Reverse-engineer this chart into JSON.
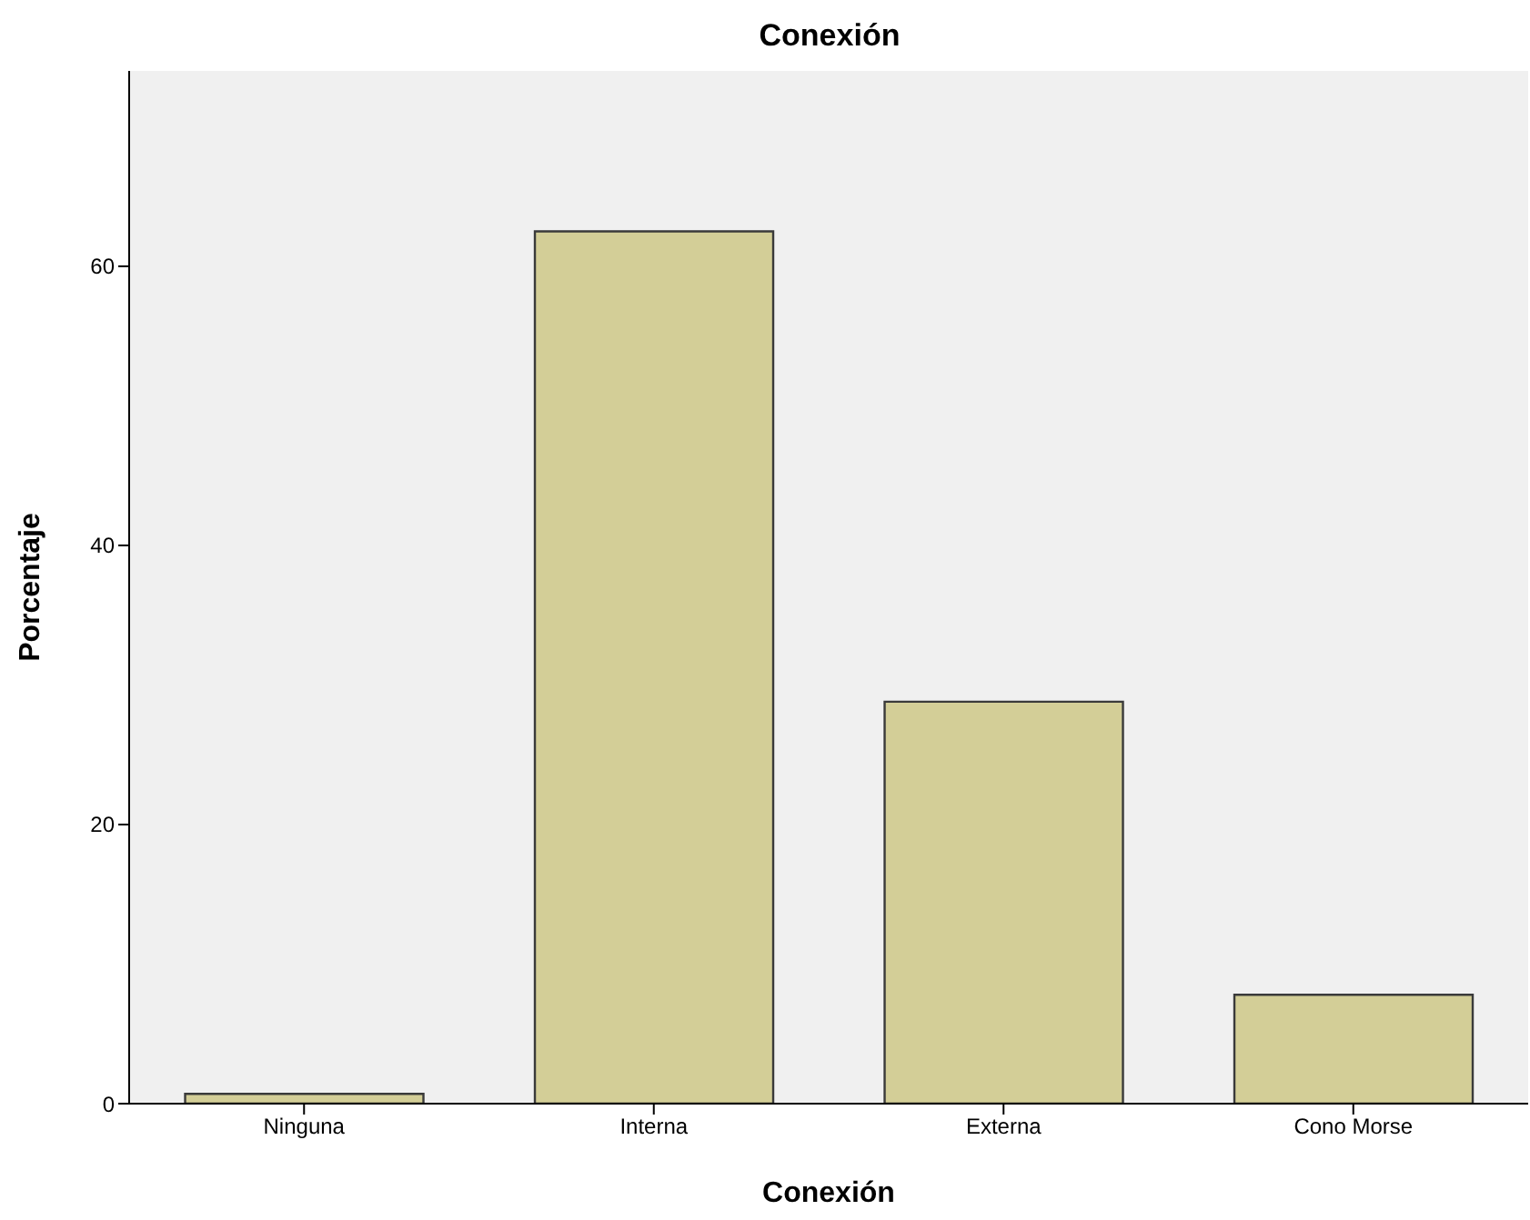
{
  "chart_data": {
    "type": "bar",
    "title": "Conexión",
    "xlabel": "Conexión",
    "ylabel": "Porcentaje",
    "categories": [
      "Ninguna",
      "Interna",
      "Externa",
      "Cono Morse"
    ],
    "values": [
      0.7,
      62.5,
      28.8,
      7.8
    ],
    "color": "#d3ce97",
    "ylim": [
      0,
      74
    ],
    "yticks": [
      0,
      20,
      40,
      60
    ],
    "grid": false
  }
}
